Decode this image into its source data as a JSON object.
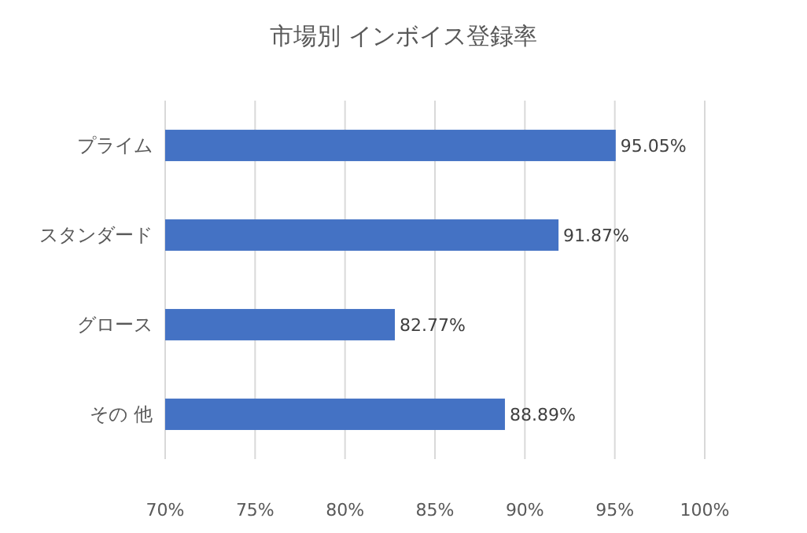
{
  "chart_data": {
    "type": "bar",
    "orientation": "horizontal",
    "title": "市場別 インボイス登録率",
    "categories": [
      "プライム",
      "スタンダード",
      "グロース",
      "その 他"
    ],
    "values": [
      95.05,
      91.87,
      82.77,
      88.89
    ],
    "value_labels": [
      "95.05%",
      "91.87%",
      "82.77%",
      "88.89%"
    ],
    "color": "#4472c4",
    "xlim": [
      70,
      100
    ],
    "xticks": [
      {
        "value": 70,
        "label": "70%"
      },
      {
        "value": 75,
        "label": "75%"
      },
      {
        "value": 80,
        "label": "80%"
      },
      {
        "value": 85,
        "label": "85%"
      },
      {
        "value": 90,
        "label": "90%"
      },
      {
        "value": 95,
        "label": "95%"
      },
      {
        "value": 100,
        "label": "100%"
      }
    ],
    "grid": "x"
  }
}
